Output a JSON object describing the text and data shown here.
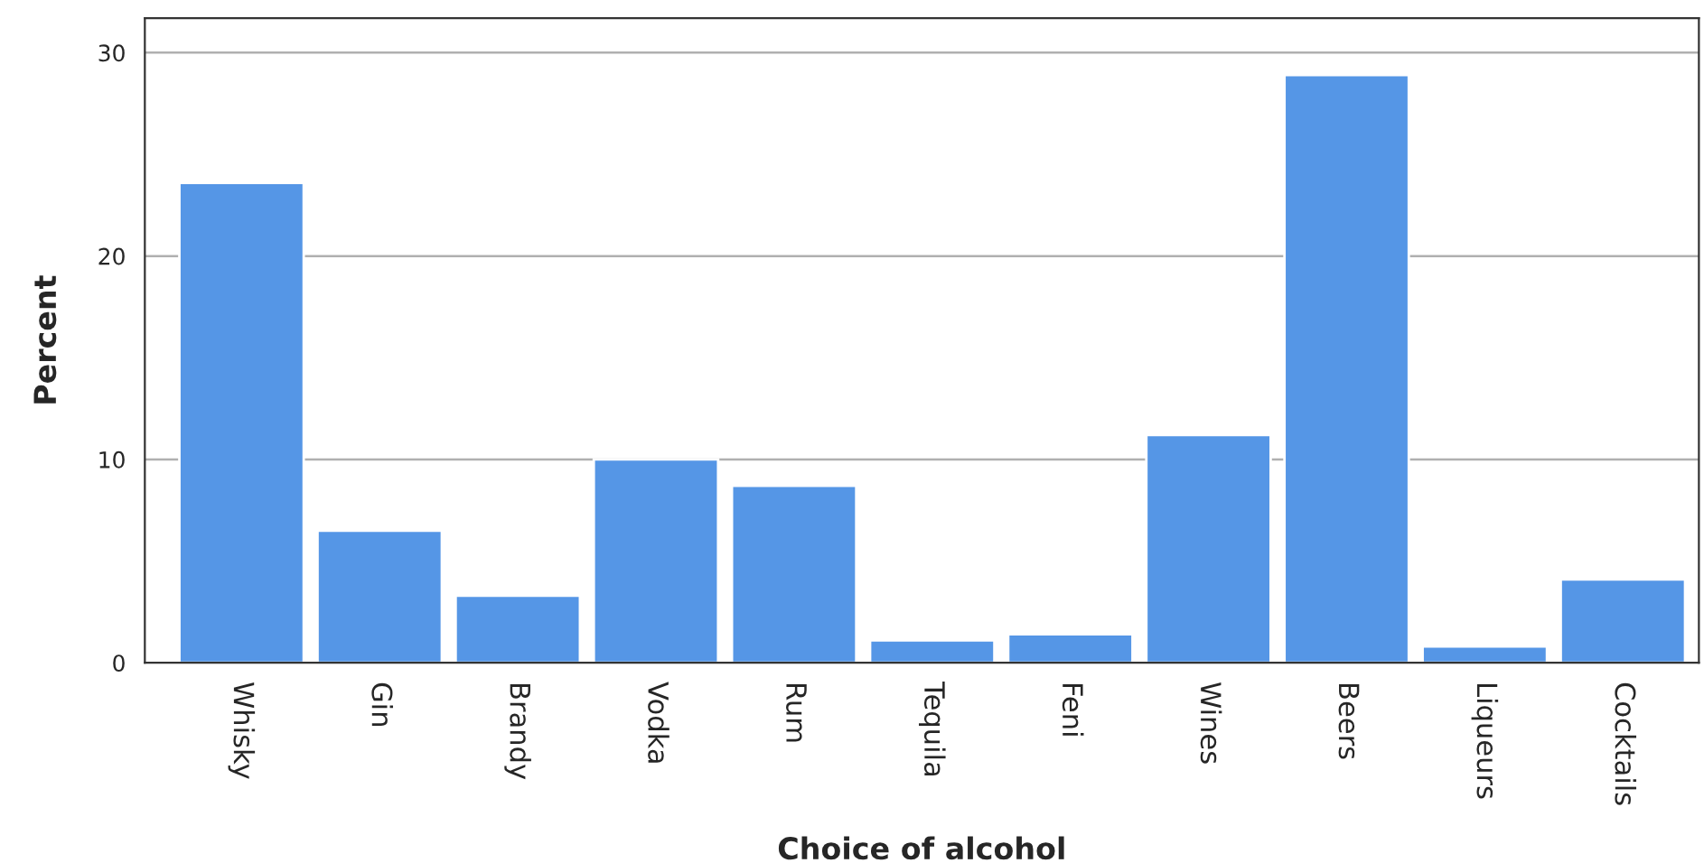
{
  "chart_data": {
    "type": "bar",
    "xlabel": "Choice of alcohol",
    "ylabel": "Percent",
    "categories": [
      "Whisky",
      "Gin",
      "Brandy",
      "Vodka",
      "Rum",
      "Tequila",
      "Feni",
      "Wines",
      "Beers",
      "Liqueurs",
      "Cocktails"
    ],
    "values": [
      23.6,
      6.5,
      3.3,
      10.0,
      8.7,
      1.1,
      1.4,
      11.2,
      28.9,
      0.8,
      4.1
    ],
    "color": "#5596e6",
    "ylim": [
      0,
      31.7
    ],
    "yticks": [
      0,
      10,
      20,
      30
    ],
    "grid": "y",
    "legend": false
  }
}
